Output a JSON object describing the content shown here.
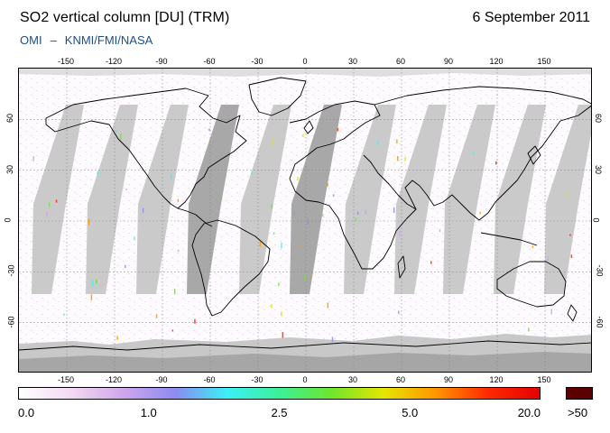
{
  "header": {
    "title": "SO2 vertical column [DU] (TRM)",
    "date": "6 September 2011",
    "credit_left": "OMI",
    "credit_sep": "–",
    "credit_right": "KNMI/FMI/NASA"
  },
  "map": {
    "lon_ticks_top": [
      "-150",
      "-120",
      "-90",
      "-60",
      "-30",
      "0",
      "30",
      "60",
      "90",
      "120",
      "150"
    ],
    "lon_ticks_bottom": [
      "-150",
      "-120",
      "-90",
      "-60",
      "-30",
      "0",
      "30",
      "60",
      "90",
      "120",
      "150"
    ],
    "lat_ticks_left": [
      "60",
      "30",
      "0",
      "-30",
      "-60"
    ],
    "lat_ticks_right": [
      "60",
      "30",
      "0",
      "-30",
      "-60"
    ],
    "lon_values": [
      -150,
      -120,
      -90,
      -60,
      -30,
      0,
      30,
      60,
      90,
      120,
      150
    ],
    "lat_values": [
      60,
      30,
      0,
      -30,
      -60
    ],
    "lon_range": [
      -180,
      180
    ],
    "lat_range": [
      -90,
      90
    ],
    "colors": {
      "no_data": "#c8c8c8",
      "no_data_dark": "#a6a6a6",
      "background": "#fdfbfd"
    }
  },
  "colorbar": {
    "labels": [
      "0.0",
      "1.0",
      "2.5",
      "5.0",
      "20.0"
    ],
    "over_label": ">50",
    "stops": [
      "#ffffff",
      "#f4d8f2",
      "#d1a6ec",
      "#8c8cf0",
      "#3cf0f6",
      "#3cf098",
      "#6ee62c",
      "#e6e600",
      "#ff9600",
      "#ff2a00",
      "#e60000"
    ],
    "over_color": "#5a0000"
  }
}
